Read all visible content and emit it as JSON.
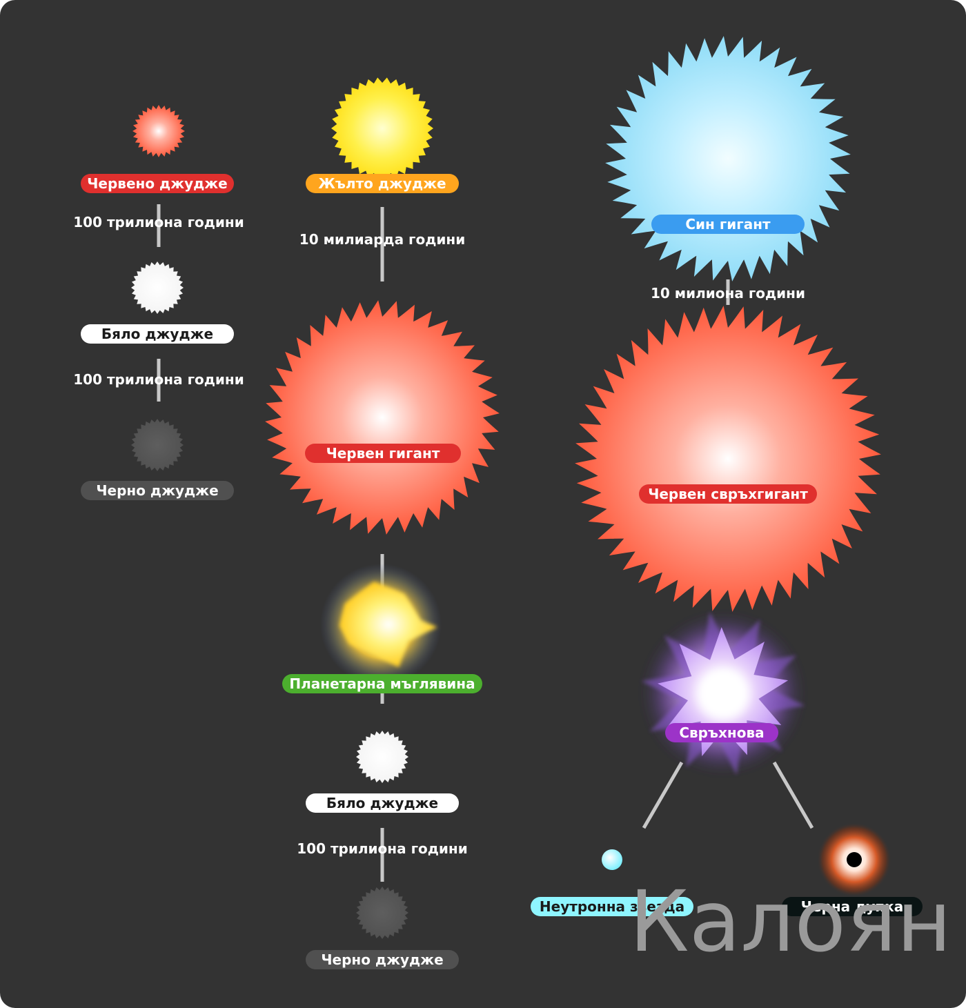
{
  "stars": [
    {
      "id": "red-dwarf",
      "label": "Червено джудже",
      "shape": "spiky",
      "fill": "#ff5a3c",
      "core": "#ffffff",
      "pill": "#e0302e",
      "text": "#ffffff"
    },
    {
      "id": "white-dwarf-1",
      "label": "Бяло джудже",
      "shape": "spiky",
      "fill": "#ffffff",
      "core": "#ffffff",
      "pill": "#ffffff",
      "text": "#1a1a1a"
    },
    {
      "id": "black-dwarf-1",
      "label": "Черно джудже",
      "shape": "spiky",
      "fill": "#565656",
      "core": "#5a5a5a",
      "pill": "#505050",
      "text": "#ffffff"
    },
    {
      "id": "yellow-dwarf",
      "label": "Жълто джудже",
      "shape": "spiky",
      "fill": "#ffe01a",
      "core": "#ffffc0",
      "pill": "#ffa51e",
      "text": "#ffffff"
    },
    {
      "id": "red-giant",
      "label": "Червен гигант",
      "shape": "spiky",
      "fill": "#ff5a3c",
      "core": "#ffffff",
      "pill": "#e0302e",
      "text": "#ffffff"
    },
    {
      "id": "planetary-nebula",
      "label": "Планетарна мъглявина",
      "shape": "nebula",
      "fill": "#ffd52a",
      "core": "#ffffff",
      "pill": "#4caf2e",
      "text": "#ffffff"
    },
    {
      "id": "white-dwarf-2",
      "label": "Бяло джудже",
      "shape": "spiky",
      "fill": "#ffffff",
      "core": "#ffffff",
      "pill": "#ffffff",
      "text": "#1a1a1a"
    },
    {
      "id": "black-dwarf-2",
      "label": "Черно джудже",
      "shape": "spiky",
      "fill": "#565656",
      "core": "#5a5a5a",
      "pill": "#505050",
      "text": "#ffffff"
    },
    {
      "id": "blue-giant",
      "label": "Син гигант",
      "shape": "spiky",
      "fill": "#8fdcf7",
      "core": "#eafbff",
      "pill": "#3a9cf0",
      "text": "#ffffff"
    },
    {
      "id": "red-supergiant",
      "label": "Червен свръхгигант",
      "shape": "spiky",
      "fill": "#ff5a3c",
      "core": "#ffffff",
      "pill": "#e0302e",
      "text": "#ffffff"
    },
    {
      "id": "supernova",
      "label": "Свръхнова",
      "shape": "supernova",
      "fill": "#c89bff",
      "core": "#ffffff",
      "pill": "#9c33c8",
      "text": "#ffffff"
    },
    {
      "id": "neutron-star",
      "label": "Неутронна звезда",
      "shape": "dot",
      "fill": "#7ff0ff",
      "core": "#ffffff",
      "pill": "#8ff5ff",
      "text": "#1a1a1a"
    },
    {
      "id": "black-hole",
      "label": "Черна дупка",
      "shape": "hole",
      "fill": "#d65a28",
      "core": "#000000",
      "pill": "#0a1414",
      "text": "#ffffff"
    }
  ],
  "durations": [
    {
      "id": "dur-red-dwarf",
      "text": "100 трилиона години"
    },
    {
      "id": "dur-white-dwarf-1",
      "text": "100 трилиона години"
    },
    {
      "id": "dur-yellow-dwarf",
      "text": "10 милиарда години"
    },
    {
      "id": "dur-white-dwarf-2",
      "text": "100 трилиона години"
    },
    {
      "id": "dur-blue-giant",
      "text": "10 милиона години"
    }
  ],
  "watermark": "Калоян",
  "colors": {
    "background": "#333333",
    "frame": "#ffffff",
    "connector": "#c8c8c8"
  }
}
